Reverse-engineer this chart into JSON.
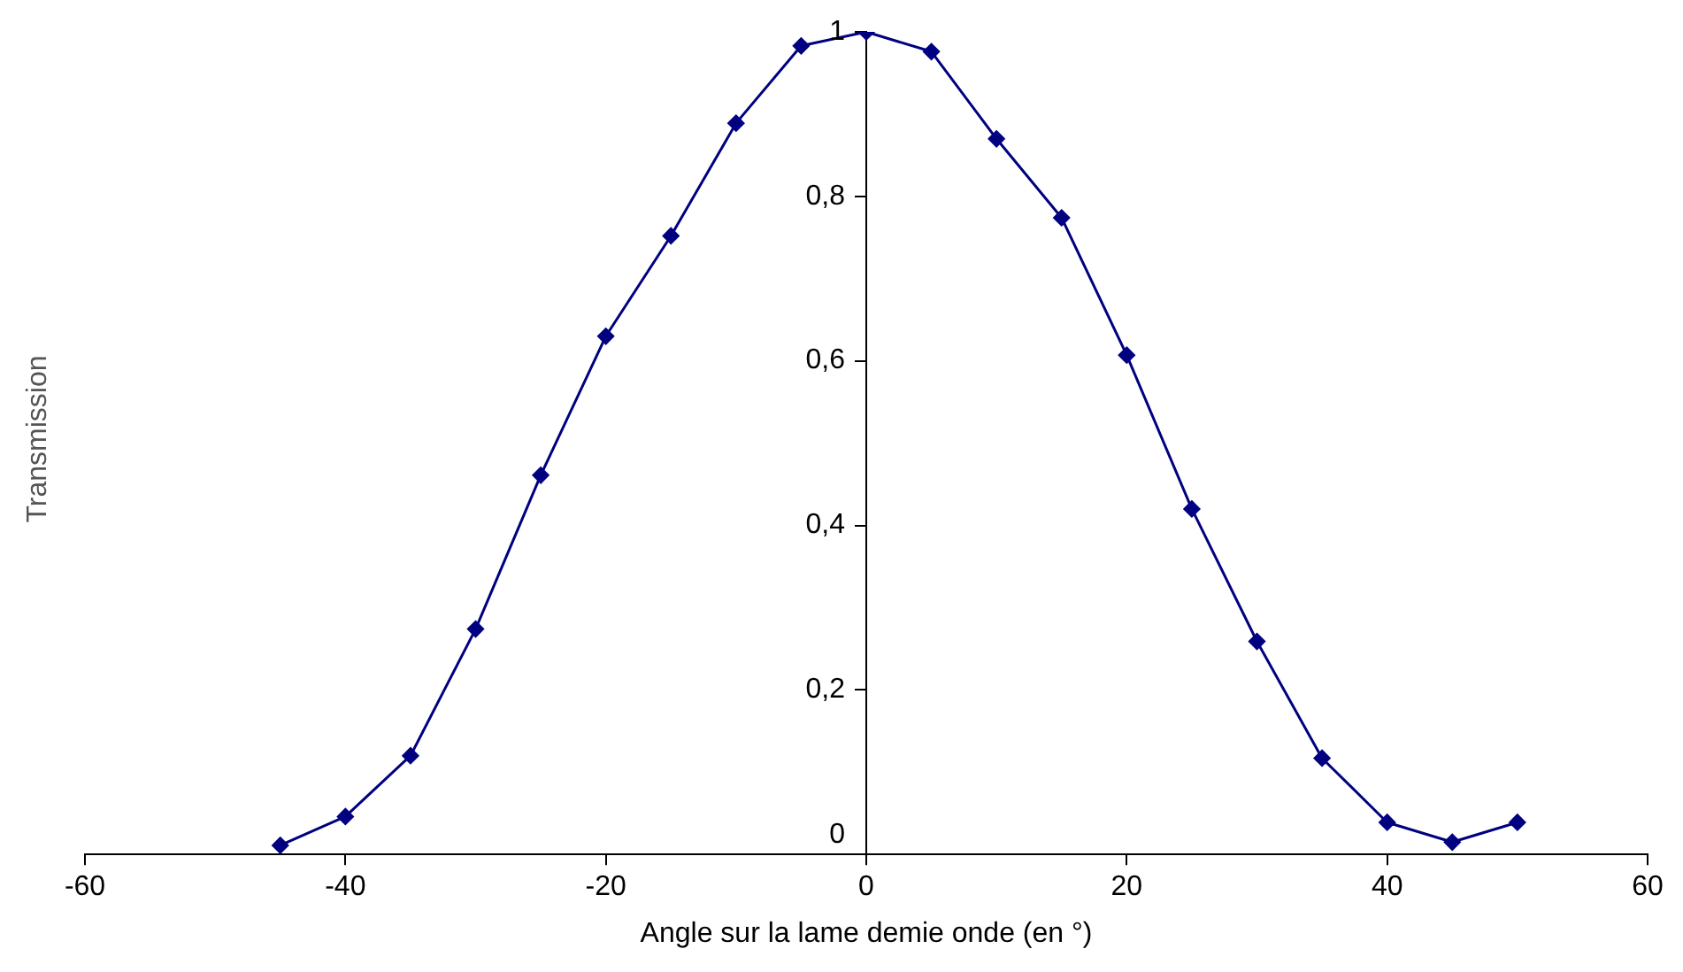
{
  "chart_data": {
    "type": "line",
    "xlabel": "Angle sur la lame demie onde (en °)",
    "ylabel": "Transmission",
    "x": [
      -45,
      -40,
      -35,
      -30,
      -25,
      -20,
      -15,
      -10,
      -5,
      0,
      5,
      10,
      15,
      20,
      25,
      30,
      35,
      40,
      45,
      50
    ],
    "series": [
      {
        "color": "#000080",
        "values": [
          0.011,
          0.046,
          0.12,
          0.274,
          0.461,
          0.63,
          0.752,
          0.889,
          0.983,
          1.0,
          0.976,
          0.87,
          0.774,
          0.607,
          0.42,
          0.259,
          0.117,
          0.039,
          0.015,
          0.039
        ]
      }
    ],
    "xlim": [
      -60,
      60
    ],
    "xticks": [
      -60,
      -40,
      -20,
      0,
      20,
      40,
      60
    ],
    "ylim": [
      0,
      1
    ],
    "yticks": [
      0,
      {
        "value": 0.2,
        "label": "0,2"
      },
      {
        "value": 0.4,
        "label": "0,4"
      },
      {
        "value": 0.6,
        "label": "0,6"
      },
      {
        "value": 0.8,
        "label": "0,8"
      },
      1
    ],
    "grid": false,
    "legend": false,
    "marker": "diamond",
    "line_style": "solid"
  }
}
